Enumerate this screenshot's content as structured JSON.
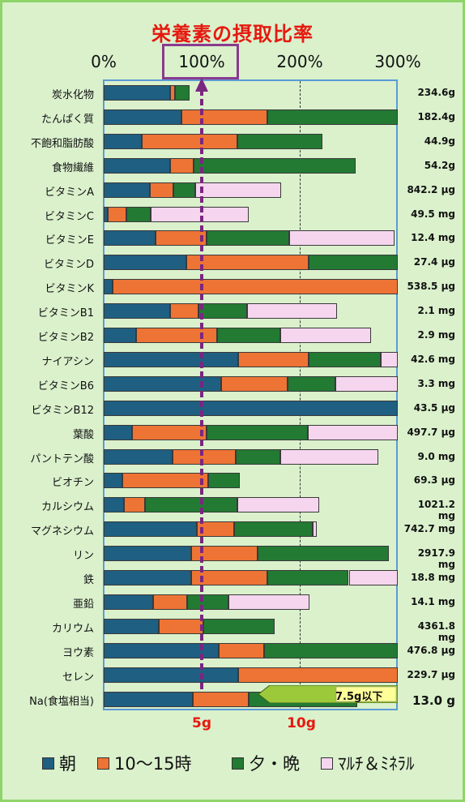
{
  "title": "栄養素の摂取比率",
  "top_axis_labels": [
    "0%",
    "100%",
    "200%",
    "300%"
  ],
  "bottom_axis_labels": [
    "5g",
    "10g"
  ],
  "callout": "7.5g以下",
  "legend": [
    "朝",
    "10～15時",
    "夕・晩",
    "ﾏﾙﾁ＆ﾐﾈﾗﾙ"
  ],
  "colors": {
    "朝": "#1f5f82",
    "10～15時": "#ed7434",
    "夕・晩": "#237a33",
    "ﾏﾙﾁ＆ﾐﾈﾗﾙ": "#f6d6ef",
    "reference_line": "#7b2680",
    "title": "#e6190f"
  },
  "chart_data": {
    "type": "bar",
    "orientation": "horizontal",
    "stacked": true,
    "title": "栄養素の摂取比率",
    "xlim_percent": [
      0,
      300
    ],
    "reference_line_percent": 100,
    "categories": [
      "炭水化物",
      "たんぱく質",
      "不飽和脂肪酸",
      "食物繊維",
      "ビタミンA",
      "ビタミンC",
      "ビタミンE",
      "ビタミンD",
      "ビタミンK",
      "ビタミンB1",
      "ビタミンB2",
      "ナイアシン",
      "ビタミンB6",
      "ビタミンB12",
      "葉酸",
      "パントテン酸",
      "ビオチン",
      "カルシウム",
      "マグネシウム",
      "リン",
      "鉄",
      "亜鉛",
      "カリウム",
      "ヨウ素",
      "セレン",
      "Na(食塩相当)"
    ],
    "amounts": [
      "234.6g",
      "182.4g",
      "44.9g",
      "54.2g",
      "842.2 μg",
      "49.5 mg",
      "12.4 mg",
      "27.4 μg",
      "538.5 μg",
      "2.1 mg",
      "2.9 mg",
      "42.6 mg",
      "3.3 mg",
      "43.5 μg",
      "497.7 μg",
      "9.0 mg",
      "69.3 μg",
      "1021.2 mg",
      "742.7 mg",
      "2917.9 mg",
      "18.8 mg",
      "14.1 mg",
      "4361.8 mg",
      "476.8 μg",
      "229.7 μg",
      "13.0 g"
    ],
    "series": [
      {
        "name": "朝",
        "values": [
          68,
          79,
          39,
          68,
          47,
          4,
          53,
          84,
          9,
          68,
          33,
          137,
          120,
          300,
          29,
          70,
          19,
          21,
          95,
          89,
          89,
          50,
          56,
          117,
          137,
          91
        ]
      },
      {
        "name": "10～15時",
        "values": [
          5,
          88,
          97,
          24,
          24,
          19,
          52,
          125,
          291,
          29,
          83,
          72,
          68,
          0,
          76,
          65,
          88,
          21,
          38,
          68,
          78,
          35,
          46,
          47,
          163,
          57
        ]
      },
      {
        "name": "夕・晩",
        "values": [
          15,
          133,
          87,
          165,
          22,
          25,
          84,
          92,
          0,
          49,
          64,
          74,
          48,
          0,
          103,
          45,
          32,
          94,
          80,
          134,
          83,
          42,
          72,
          136,
          0,
          111
        ]
      },
      {
        "name": "ﾏﾙﾁ＆ﾐﾈﾗﾙ",
        "values": [
          0,
          0,
          0,
          0,
          88,
          100,
          108,
          0,
          0,
          92,
          93,
          17,
          64,
          0,
          93,
          100,
          0,
          84,
          4,
          0,
          50,
          83,
          0,
          0,
          0,
          0
        ]
      }
    ]
  }
}
